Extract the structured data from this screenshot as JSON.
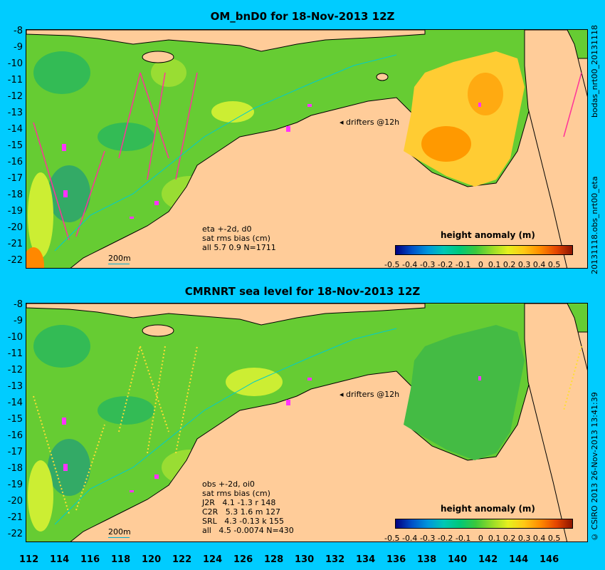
{
  "top": {
    "title": "OM_bnD0 for 18-Nov-2013 12Z",
    "drifters": "drifters @12h",
    "stats_lines": [
      "eta +-2d, d0",
      "sat rms bias (cm)",
      "all 5.7 0.9 N=1711"
    ],
    "scale_label": "200m",
    "colorbar_title": "height anomaly (m)",
    "side_right_top": "bodas_nrt00_20131118",
    "side_right_bottom": "20131118.obs_nrt00_eta"
  },
  "bottom": {
    "title": "CMRNRT sea level  for 18-Nov-2013 12Z",
    "drifters": "drifters @12h",
    "stats_lines": [
      "obs +-2d, oi0",
      "sat rms bias (cm)",
      "J2R   4.1 -1.3 r 148",
      "C2R   5.3 1.6 m 127",
      "SRL   4.3 -0.13 k 155",
      "all   4.5 -0.0074 N=430"
    ],
    "scale_label": "200m",
    "colorbar_title": "height anomaly (m)",
    "side_right": "© CSIRO 2013  26-Nov-2013 13:41:39"
  },
  "axes": {
    "lat_ticks": [
      "-8",
      "-9",
      "-10",
      "-11",
      "-12",
      "-13",
      "-14",
      "-15",
      "-16",
      "-17",
      "-18",
      "-19",
      "-20",
      "-21",
      "-22"
    ],
    "lon_ticks": [
      "112",
      "114",
      "116",
      "118",
      "120",
      "122",
      "124",
      "126",
      "128",
      "130",
      "132",
      "134",
      "136",
      "138",
      "140",
      "142",
      "144",
      "146"
    ],
    "colorbar_ticks": [
      "-0.5",
      "-0.4",
      "-0.3",
      "-0.2",
      "-0.1",
      "0",
      "0.1",
      "0.2",
      "0.3",
      "0.4",
      "0.5"
    ]
  },
  "colors": {
    "background": "#00ccff",
    "land": "#ffcc99",
    "ocean_base": "#66cc33",
    "gulf_anomaly": "#ffb020",
    "drifter": "#ff33ff"
  }
}
